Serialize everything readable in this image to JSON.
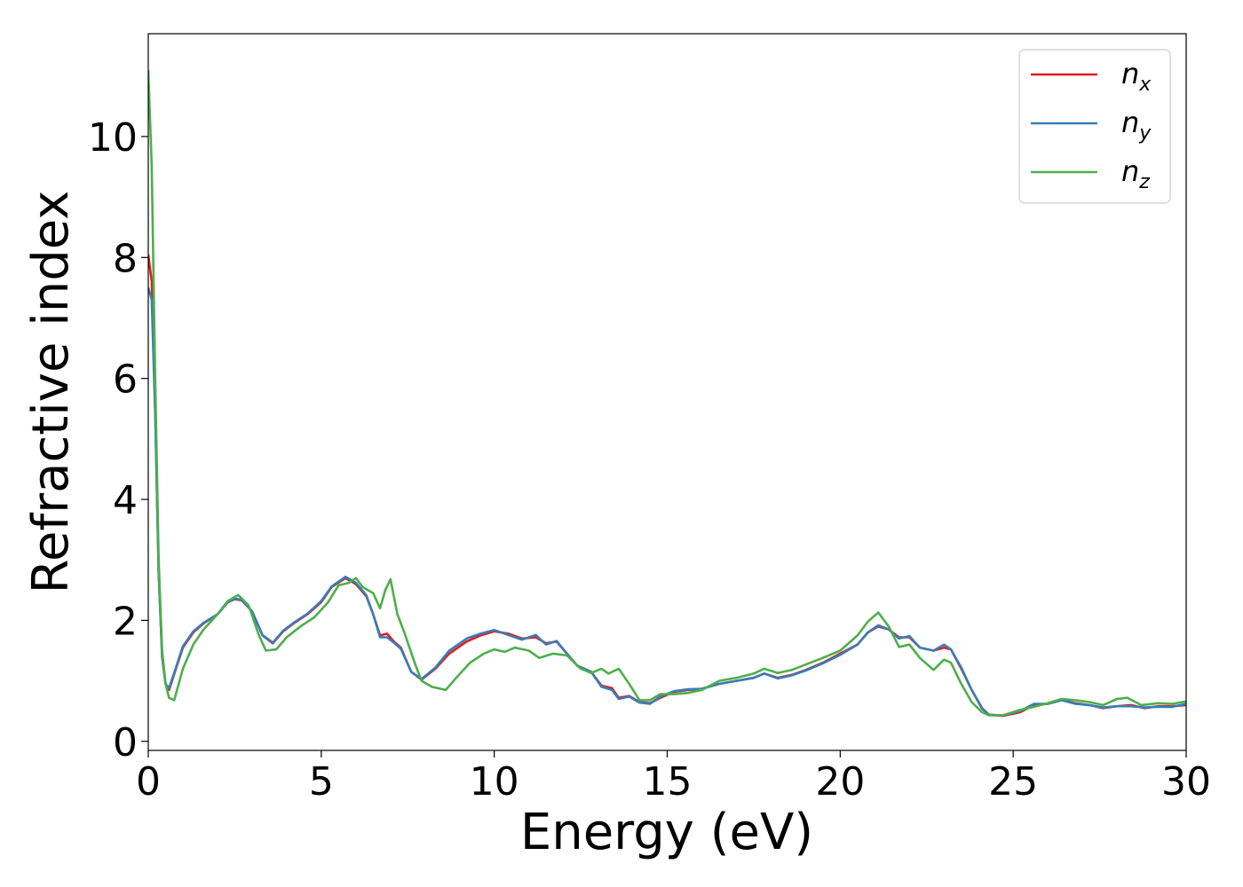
{
  "chart_data": {
    "type": "line",
    "title": "",
    "xlabel": "Energy (eV)",
    "ylabel": "Refractive index",
    "xlim": [
      0,
      30
    ],
    "ylim": [
      -0.15,
      11.7
    ],
    "xticks": [
      0,
      5,
      10,
      15,
      20,
      25,
      30
    ],
    "yticks": [
      0,
      2,
      4,
      6,
      8,
      10
    ],
    "grid": false,
    "legend_position": "top-right",
    "series": [
      {
        "name": "n",
        "subscript": "x",
        "color": "#e41a1c",
        "points": [
          [
            0.0,
            8.05
          ],
          [
            0.1,
            7.6
          ],
          [
            0.2,
            5.5
          ],
          [
            0.3,
            2.8
          ],
          [
            0.4,
            1.4
          ],
          [
            0.5,
            0.95
          ],
          [
            0.6,
            0.85
          ],
          [
            0.8,
            1.2
          ],
          [
            1.0,
            1.55
          ],
          [
            1.3,
            1.8
          ],
          [
            1.6,
            1.95
          ],
          [
            2.0,
            2.1
          ],
          [
            2.3,
            2.3
          ],
          [
            2.5,
            2.35
          ],
          [
            2.7,
            2.33
          ],
          [
            3.0,
            2.15
          ],
          [
            3.3,
            1.75
          ],
          [
            3.6,
            1.62
          ],
          [
            3.9,
            1.82
          ],
          [
            4.2,
            1.95
          ],
          [
            4.6,
            2.1
          ],
          [
            5.0,
            2.3
          ],
          [
            5.3,
            2.55
          ],
          [
            5.7,
            2.7
          ],
          [
            6.0,
            2.6
          ],
          [
            6.3,
            2.4
          ],
          [
            6.5,
            2.1
          ],
          [
            6.7,
            1.75
          ],
          [
            6.9,
            1.78
          ],
          [
            7.1,
            1.65
          ],
          [
            7.3,
            1.55
          ],
          [
            7.6,
            1.15
          ],
          [
            7.9,
            1.02
          ],
          [
            8.3,
            1.2
          ],
          [
            8.7,
            1.45
          ],
          [
            9.2,
            1.65
          ],
          [
            9.6,
            1.75
          ],
          [
            10.0,
            1.82
          ],
          [
            10.4,
            1.78
          ],
          [
            10.8,
            1.7
          ],
          [
            11.2,
            1.72
          ],
          [
            11.5,
            1.62
          ],
          [
            11.8,
            1.65
          ],
          [
            12.1,
            1.45
          ],
          [
            12.4,
            1.25
          ],
          [
            12.8,
            1.15
          ],
          [
            13.1,
            0.92
          ],
          [
            13.4,
            0.88
          ],
          [
            13.6,
            0.72
          ],
          [
            13.9,
            0.75
          ],
          [
            14.2,
            0.65
          ],
          [
            14.5,
            0.63
          ],
          [
            14.8,
            0.72
          ],
          [
            15.2,
            0.82
          ],
          [
            15.6,
            0.85
          ],
          [
            16.0,
            0.87
          ],
          [
            16.5,
            0.95
          ],
          [
            17.0,
            1.0
          ],
          [
            17.5,
            1.05
          ],
          [
            17.8,
            1.12
          ],
          [
            18.2,
            1.05
          ],
          [
            18.6,
            1.1
          ],
          [
            19.0,
            1.18
          ],
          [
            19.5,
            1.3
          ],
          [
            20.0,
            1.45
          ],
          [
            20.5,
            1.6
          ],
          [
            20.8,
            1.8
          ],
          [
            21.1,
            1.9
          ],
          [
            21.4,
            1.85
          ],
          [
            21.7,
            1.72
          ],
          [
            22.0,
            1.72
          ],
          [
            22.3,
            1.55
          ],
          [
            22.7,
            1.5
          ],
          [
            23.0,
            1.55
          ],
          [
            23.2,
            1.52
          ],
          [
            23.5,
            1.2
          ],
          [
            23.8,
            0.85
          ],
          [
            24.1,
            0.55
          ],
          [
            24.3,
            0.44
          ],
          [
            24.7,
            0.42
          ],
          [
            25.2,
            0.48
          ],
          [
            25.6,
            0.6
          ],
          [
            26.0,
            0.62
          ],
          [
            26.4,
            0.68
          ],
          [
            26.8,
            0.63
          ],
          [
            27.2,
            0.6
          ],
          [
            27.6,
            0.55
          ],
          [
            28.0,
            0.58
          ],
          [
            28.4,
            0.6
          ],
          [
            28.8,
            0.55
          ],
          [
            29.2,
            0.58
          ],
          [
            29.6,
            0.58
          ],
          [
            30.0,
            0.6
          ]
        ]
      },
      {
        "name": "n",
        "subscript": "y",
        "color": "#377eb8",
        "points": [
          [
            0.0,
            7.5
          ],
          [
            0.1,
            7.3
          ],
          [
            0.2,
            5.4
          ],
          [
            0.3,
            2.8
          ],
          [
            0.4,
            1.4
          ],
          [
            0.5,
            0.95
          ],
          [
            0.6,
            0.88
          ],
          [
            0.8,
            1.22
          ],
          [
            1.0,
            1.57
          ],
          [
            1.3,
            1.82
          ],
          [
            1.6,
            1.96
          ],
          [
            2.0,
            2.1
          ],
          [
            2.3,
            2.3
          ],
          [
            2.5,
            2.36
          ],
          [
            2.7,
            2.34
          ],
          [
            3.0,
            2.15
          ],
          [
            3.3,
            1.76
          ],
          [
            3.6,
            1.63
          ],
          [
            3.9,
            1.83
          ],
          [
            4.2,
            1.96
          ],
          [
            4.6,
            2.11
          ],
          [
            5.0,
            2.32
          ],
          [
            5.3,
            2.56
          ],
          [
            5.7,
            2.72
          ],
          [
            6.0,
            2.62
          ],
          [
            6.3,
            2.42
          ],
          [
            6.5,
            2.1
          ],
          [
            6.7,
            1.72
          ],
          [
            6.9,
            1.72
          ],
          [
            7.1,
            1.63
          ],
          [
            7.3,
            1.53
          ],
          [
            7.6,
            1.15
          ],
          [
            7.9,
            1.03
          ],
          [
            8.3,
            1.22
          ],
          [
            8.7,
            1.5
          ],
          [
            9.2,
            1.7
          ],
          [
            9.6,
            1.78
          ],
          [
            10.0,
            1.84
          ],
          [
            10.4,
            1.76
          ],
          [
            10.8,
            1.68
          ],
          [
            11.2,
            1.76
          ],
          [
            11.5,
            1.6
          ],
          [
            11.8,
            1.66
          ],
          [
            12.1,
            1.45
          ],
          [
            12.4,
            1.25
          ],
          [
            12.8,
            1.15
          ],
          [
            13.1,
            0.9
          ],
          [
            13.4,
            0.85
          ],
          [
            13.6,
            0.7
          ],
          [
            13.9,
            0.74
          ],
          [
            14.2,
            0.64
          ],
          [
            14.5,
            0.62
          ],
          [
            14.8,
            0.74
          ],
          [
            15.2,
            0.83
          ],
          [
            15.6,
            0.86
          ],
          [
            16.0,
            0.87
          ],
          [
            16.5,
            0.95
          ],
          [
            17.0,
            1.0
          ],
          [
            17.5,
            1.05
          ],
          [
            17.8,
            1.12
          ],
          [
            18.2,
            1.04
          ],
          [
            18.6,
            1.09
          ],
          [
            19.0,
            1.17
          ],
          [
            19.5,
            1.29
          ],
          [
            20.0,
            1.43
          ],
          [
            20.5,
            1.6
          ],
          [
            20.8,
            1.8
          ],
          [
            21.1,
            1.92
          ],
          [
            21.4,
            1.85
          ],
          [
            21.7,
            1.7
          ],
          [
            22.0,
            1.74
          ],
          [
            22.3,
            1.55
          ],
          [
            22.7,
            1.5
          ],
          [
            23.0,
            1.6
          ],
          [
            23.2,
            1.52
          ],
          [
            23.5,
            1.22
          ],
          [
            23.8,
            0.85
          ],
          [
            24.1,
            0.54
          ],
          [
            24.3,
            0.44
          ],
          [
            24.7,
            0.43
          ],
          [
            25.2,
            0.5
          ],
          [
            25.6,
            0.62
          ],
          [
            26.0,
            0.62
          ],
          [
            26.4,
            0.68
          ],
          [
            26.8,
            0.62
          ],
          [
            27.2,
            0.6
          ],
          [
            27.6,
            0.56
          ],
          [
            28.0,
            0.58
          ],
          [
            28.4,
            0.58
          ],
          [
            28.8,
            0.56
          ],
          [
            29.2,
            0.57
          ],
          [
            29.6,
            0.57
          ],
          [
            30.0,
            0.62
          ]
        ]
      },
      {
        "name": "n",
        "subscript": "z",
        "color": "#4daf4a",
        "points": [
          [
            0.0,
            11.1
          ],
          [
            0.1,
            9.5
          ],
          [
            0.2,
            6.0
          ],
          [
            0.3,
            3.0
          ],
          [
            0.4,
            1.5
          ],
          [
            0.5,
            0.95
          ],
          [
            0.6,
            0.72
          ],
          [
            0.75,
            0.68
          ],
          [
            1.0,
            1.2
          ],
          [
            1.3,
            1.6
          ],
          [
            1.6,
            1.85
          ],
          [
            2.0,
            2.1
          ],
          [
            2.3,
            2.32
          ],
          [
            2.6,
            2.42
          ],
          [
            2.9,
            2.25
          ],
          [
            3.2,
            1.75
          ],
          [
            3.4,
            1.5
          ],
          [
            3.7,
            1.52
          ],
          [
            4.0,
            1.72
          ],
          [
            4.4,
            1.9
          ],
          [
            4.8,
            2.05
          ],
          [
            5.2,
            2.3
          ],
          [
            5.5,
            2.58
          ],
          [
            5.8,
            2.62
          ],
          [
            6.0,
            2.7
          ],
          [
            6.2,
            2.55
          ],
          [
            6.5,
            2.45
          ],
          [
            6.7,
            2.2
          ],
          [
            6.85,
            2.5
          ],
          [
            7.0,
            2.68
          ],
          [
            7.2,
            2.1
          ],
          [
            7.4,
            1.8
          ],
          [
            7.7,
            1.3
          ],
          [
            7.9,
            1.0
          ],
          [
            8.2,
            0.9
          ],
          [
            8.6,
            0.85
          ],
          [
            8.9,
            1.05
          ],
          [
            9.3,
            1.3
          ],
          [
            9.7,
            1.45
          ],
          [
            10.0,
            1.52
          ],
          [
            10.3,
            1.48
          ],
          [
            10.6,
            1.55
          ],
          [
            11.0,
            1.5
          ],
          [
            11.3,
            1.38
          ],
          [
            11.7,
            1.45
          ],
          [
            12.1,
            1.42
          ],
          [
            12.5,
            1.2
          ],
          [
            12.8,
            1.13
          ],
          [
            13.1,
            1.2
          ],
          [
            13.3,
            1.12
          ],
          [
            13.6,
            1.2
          ],
          [
            13.9,
            0.95
          ],
          [
            14.2,
            0.68
          ],
          [
            14.5,
            0.68
          ],
          [
            14.8,
            0.78
          ],
          [
            15.2,
            0.78
          ],
          [
            15.6,
            0.8
          ],
          [
            16.0,
            0.85
          ],
          [
            16.5,
            1.0
          ],
          [
            17.0,
            1.05
          ],
          [
            17.5,
            1.12
          ],
          [
            17.8,
            1.2
          ],
          [
            18.2,
            1.13
          ],
          [
            18.6,
            1.18
          ],
          [
            19.0,
            1.27
          ],
          [
            19.5,
            1.38
          ],
          [
            20.0,
            1.5
          ],
          [
            20.5,
            1.75
          ],
          [
            20.8,
            1.98
          ],
          [
            21.1,
            2.13
          ],
          [
            21.4,
            1.9
          ],
          [
            21.7,
            1.56
          ],
          [
            22.0,
            1.6
          ],
          [
            22.3,
            1.38
          ],
          [
            22.7,
            1.18
          ],
          [
            23.0,
            1.35
          ],
          [
            23.2,
            1.3
          ],
          [
            23.5,
            0.95
          ],
          [
            23.8,
            0.65
          ],
          [
            24.1,
            0.48
          ],
          [
            24.3,
            0.43
          ],
          [
            24.7,
            0.43
          ],
          [
            25.2,
            0.52
          ],
          [
            25.6,
            0.57
          ],
          [
            26.0,
            0.63
          ],
          [
            26.4,
            0.7
          ],
          [
            26.8,
            0.68
          ],
          [
            27.2,
            0.65
          ],
          [
            27.6,
            0.6
          ],
          [
            28.0,
            0.7
          ],
          [
            28.3,
            0.72
          ],
          [
            28.7,
            0.6
          ],
          [
            29.2,
            0.63
          ],
          [
            29.6,
            0.62
          ],
          [
            30.0,
            0.66
          ]
        ]
      }
    ]
  }
}
